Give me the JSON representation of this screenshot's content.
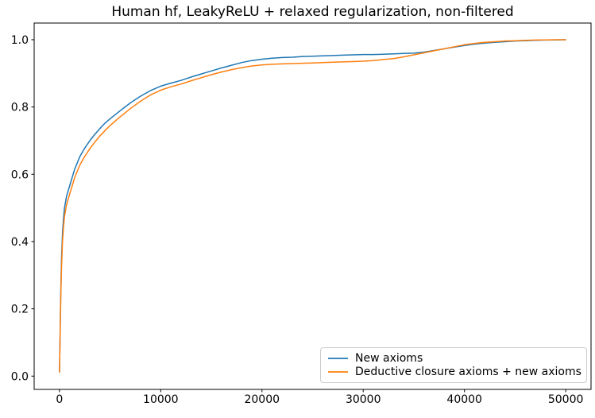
{
  "figure": {
    "background": "#ffffff",
    "frame_color": "#000000"
  },
  "chart_data": {
    "type": "line",
    "title": "Human hf, LeakyReLU + relaxed regularization, non-filtered",
    "xlabel": "",
    "ylabel": "",
    "grid": false,
    "legend": {
      "position": "lower right"
    },
    "xlim": [
      -2500,
      52500
    ],
    "ylim": [
      -0.0395,
      1.0495
    ],
    "xticks": {
      "values": [
        0,
        10000,
        20000,
        30000,
        40000,
        50000
      ],
      "labels": [
        "0",
        "10000",
        "20000",
        "30000",
        "40000",
        "50000"
      ]
    },
    "yticks": {
      "values": [
        0.0,
        0.2,
        0.4,
        0.6,
        0.8,
        1.0
      ],
      "labels": [
        "0.0",
        "0.2",
        "0.4",
        "0.6",
        "0.8",
        "1.0"
      ]
    },
    "x": [
      0,
      50,
      100,
      150,
      200,
      300,
      400,
      500,
      700,
      1000,
      1500,
      2000,
      2500,
      3000,
      3500,
      4000,
      4500,
      5000,
      6000,
      7000,
      8000,
      9000,
      10000,
      11000,
      12000,
      13000,
      14000,
      15000,
      16000,
      17000,
      18000,
      19000,
      20000,
      21000,
      22000,
      23000,
      24000,
      25000,
      26000,
      27000,
      28000,
      29000,
      30000,
      31000,
      32000,
      33000,
      34000,
      35000,
      36000,
      37000,
      38000,
      39000,
      40000,
      41000,
      42000,
      43000,
      44000,
      45000,
      46000,
      47000,
      48000,
      49000,
      50000
    ],
    "series": [
      {
        "name": "New axioms",
        "color": "#1f77b4",
        "values": [
          0.012,
          0.1,
          0.2,
          0.28,
          0.345,
          0.425,
          0.47,
          0.5,
          0.535,
          0.565,
          0.615,
          0.652,
          0.678,
          0.7,
          0.719,
          0.736,
          0.752,
          0.765,
          0.789,
          0.812,
          0.832,
          0.849,
          0.862,
          0.871,
          0.879,
          0.889,
          0.898,
          0.907,
          0.916,
          0.924,
          0.932,
          0.938,
          0.942,
          0.945,
          0.947,
          0.948,
          0.95,
          0.951,
          0.952,
          0.953,
          0.954,
          0.955,
          0.956,
          0.956,
          0.957,
          0.958,
          0.959,
          0.96,
          0.963,
          0.968,
          0.973,
          0.978,
          0.983,
          0.987,
          0.99,
          0.992,
          0.994,
          0.996,
          0.997,
          0.998,
          0.999,
          0.9995,
          1.0
        ]
      },
      {
        "name": "Deductive closure axioms + new axioms",
        "color": "#ff7f0e",
        "values": [
          0.012,
          0.09,
          0.18,
          0.26,
          0.32,
          0.4,
          0.445,
          0.475,
          0.51,
          0.54,
          0.59,
          0.627,
          0.653,
          0.676,
          0.696,
          0.714,
          0.73,
          0.745,
          0.771,
          0.795,
          0.817,
          0.836,
          0.85,
          0.86,
          0.868,
          0.878,
          0.887,
          0.896,
          0.904,
          0.911,
          0.917,
          0.922,
          0.925,
          0.927,
          0.928,
          0.929,
          0.93,
          0.931,
          0.932,
          0.933,
          0.934,
          0.935,
          0.936,
          0.938,
          0.941,
          0.944,
          0.949,
          0.955,
          0.961,
          0.967,
          0.973,
          0.979,
          0.985,
          0.989,
          0.992,
          0.994,
          0.996,
          0.997,
          0.998,
          0.999,
          0.9995,
          0.9998,
          1.0
        ]
      }
    ]
  }
}
